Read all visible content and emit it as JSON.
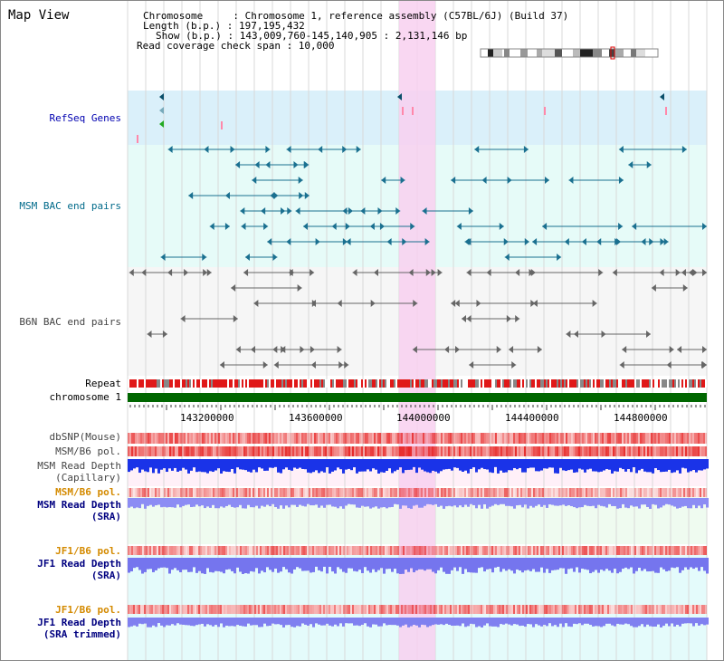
{
  "window": {
    "title": "Map View"
  },
  "header": {
    "line1": "Chromosome     : Chromosome 1, reference assembly (C57BL/6J) (Build 37)",
    "line2": "Length (b.p.) : 197,195,432",
    "line3": "Show (b.p.) : 143,009,760-145,140,905 : 2,131,146 bp",
    "line4": "Read coverage check span : 10,000"
  },
  "tracks": {
    "refseq": "RefSeq Genes",
    "msm_bac": "MSM BAC end pairs",
    "b6n_bac": "B6N BAC end pairs",
    "repeat": "Repeat",
    "chromosome": "chromosome 1",
    "dbsnp": "dbSNP(Mouse)",
    "msm_b6_pol_1": "MSM/B6 pol.",
    "msm_depth_cap_1": "MSM Read Depth",
    "msm_depth_cap_2": "(Capillary)",
    "msm_b6_pol_2": "MSM/B6 pol.",
    "msm_depth_sra_1": "MSM Read Depth",
    "msm_depth_sra_2": "(SRA)",
    "jf1_b6_pol_1": "JF1/B6 pol.",
    "jf1_depth_sra_1": "JF1 Read Depth",
    "jf1_depth_sra_2": "(SRA)",
    "jf1_b6_pol_2": "JF1/B6 pol.",
    "jf1_depth_trim_1": "JF1 Read Depth",
    "jf1_depth_trim_2": "(SRA trimmed)"
  },
  "axis": {
    "ticks": [
      "143200000",
      "143600000",
      "144000000",
      "144400000",
      "144800000"
    ]
  },
  "colors": {
    "refseq_label": "#0000b0",
    "msm_label": "#006a8a",
    "b6n_label": "#444444",
    "pol_label": "#d48a00",
    "depth_label": "#000080",
    "chromosome_bar": "#006600",
    "highlight": "#f8d0f0"
  }
}
